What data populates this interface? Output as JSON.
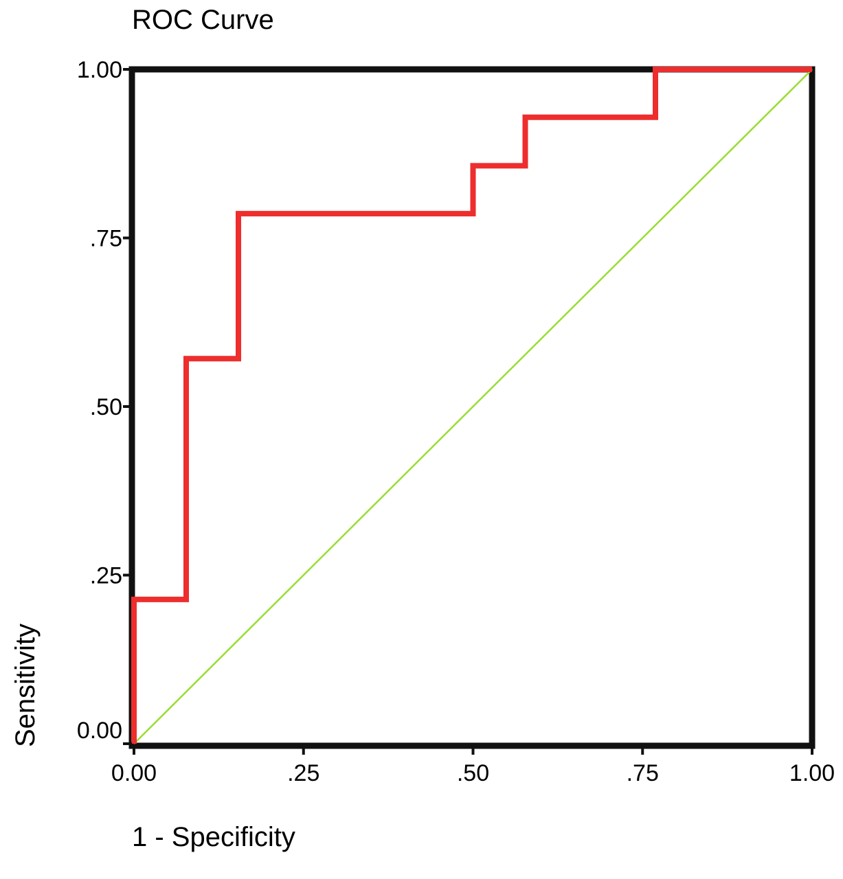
{
  "chart_data": {
    "type": "line",
    "title": "ROC Curve",
    "xlabel": "1 - Specificity",
    "ylabel": "Sensitivity",
    "xlim": [
      0,
      1
    ],
    "ylim": [
      0,
      1
    ],
    "x_ticks": [
      0,
      0.25,
      0.5,
      0.75,
      1
    ],
    "x_tick_labels": [
      "0.00",
      ".25",
      ".50",
      ".75",
      "1.00"
    ],
    "y_ticks": [
      0,
      0.25,
      0.5,
      0.75,
      1
    ],
    "y_tick_labels": [
      "0.00",
      ".25",
      ".50",
      ".75",
      "1.00"
    ],
    "grid": false,
    "series": [
      {
        "color": "#ee2d2d",
        "x": [
          0,
          0,
          0.077,
          0.077,
          0.154,
          0.154,
          0.5,
          0.5,
          0.577,
          0.577,
          0.769,
          0.769,
          1
        ],
        "y": [
          0,
          0.214,
          0.214,
          0.571,
          0.571,
          0.786,
          0.786,
          0.857,
          0.857,
          0.929,
          0.929,
          1,
          1
        ]
      },
      {
        "color": "#99dd33",
        "x": [
          0,
          1
        ],
        "y": [
          0,
          1
        ]
      }
    ]
  }
}
